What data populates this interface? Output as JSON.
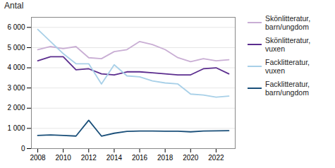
{
  "chart_data": {
    "type": "line",
    "y_label": "Antal",
    "x": [
      2008,
      2009,
      2010,
      2011,
      2012,
      2013,
      2014,
      2015,
      2016,
      2017,
      2018,
      2019,
      2020,
      2021,
      2022,
      2023
    ],
    "series": [
      {
        "name": "Skönlitteratur,\nbarn/ungdom",
        "color": "#c9aed4",
        "values": [
          4900,
          5050,
          4950,
          5050,
          4500,
          4450,
          4800,
          4900,
          5300,
          5150,
          4900,
          4500,
          4300,
          4450,
          4350,
          4400
        ]
      },
      {
        "name": "Skönlitteratur,\nvuxen",
        "color": "#5b2d8e",
        "values": [
          4350,
          4550,
          4550,
          3900,
          3950,
          3700,
          3650,
          3800,
          3800,
          3750,
          3700,
          3650,
          3650,
          3950,
          4000,
          3700
        ]
      },
      {
        "name": "Facklitteratur,\nvuxen",
        "color": "#a8d0e8",
        "values": [
          5900,
          5300,
          4700,
          4200,
          4200,
          3200,
          4150,
          3600,
          3550,
          3350,
          3250,
          3200,
          2700,
          2650,
          2550,
          2600
        ]
      },
      {
        "name": "Facklitteratur,\nbarn/ungdom",
        "color": "#1a4f79",
        "values": [
          650,
          680,
          650,
          620,
          1400,
          620,
          760,
          850,
          870,
          870,
          860,
          860,
          830,
          870,
          880,
          890
        ]
      }
    ],
    "xlim": [
      2007.5,
      2023.5
    ],
    "xticks": [
      2008,
      2010,
      2012,
      2014,
      2016,
      2018,
      2020,
      2022
    ],
    "ylim": [
      0,
      6500
    ],
    "yticks": [
      0,
      {
        "value": 1000,
        "label": "1 000"
      },
      {
        "value": 2000,
        "label": "2 000"
      },
      {
        "value": 3000,
        "label": "3 000"
      },
      {
        "value": 4000,
        "label": "4 000"
      },
      {
        "value": 5000,
        "label": "5 000"
      },
      {
        "value": 6000,
        "label": "6 000"
      }
    ],
    "grid": true,
    "legend": "right"
  }
}
